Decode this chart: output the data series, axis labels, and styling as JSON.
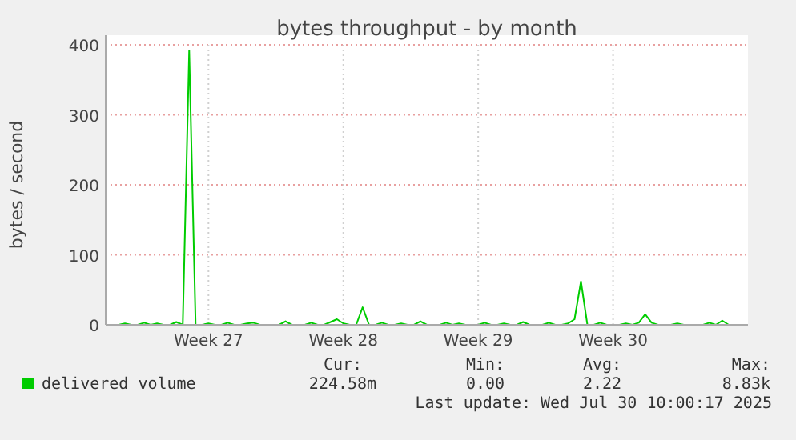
{
  "chart_data": {
    "type": "line",
    "title": "bytes throughput - by month",
    "ylabel": "bytes / second",
    "categories": [
      null,
      null,
      null,
      null,
      null,
      null,
      null,
      null,
      null,
      null,
      null,
      null,
      null,
      null,
      null,
      null,
      "Week 27",
      null,
      null,
      null,
      null,
      null,
      null,
      null,
      null,
      null,
      null,
      null,
      null,
      null,
      null,
      null,
      null,
      null,
      null,
      null,
      null,
      "Week 28",
      null,
      null,
      null,
      null,
      null,
      null,
      null,
      null,
      null,
      null,
      null,
      null,
      null,
      null,
      null,
      null,
      null,
      null,
      null,
      null,
      "Week 29",
      null,
      null,
      null,
      null,
      null,
      null,
      null,
      null,
      null,
      null,
      null,
      null,
      null,
      null,
      null,
      null,
      null,
      null,
      null,
      null,
      "Week 30",
      null,
      null,
      null,
      null,
      null,
      null,
      null,
      null,
      null,
      null,
      null,
      null,
      null,
      null,
      null,
      null,
      null,
      null,
      null,
      null,
      null
    ],
    "ylim": [
      0,
      400
    ],
    "yticks": [
      0,
      100,
      200,
      300,
      400
    ],
    "grid": true,
    "legend": "bottom",
    "series": [
      {
        "name": "delivered volume",
        "color": "#00cc00",
        "values": [
          null,
          null,
          0,
          2,
          0,
          0,
          3,
          0,
          2,
          0,
          0,
          4,
          0,
          392,
          0,
          0,
          2,
          0,
          0,
          3,
          0,
          0,
          2,
          3,
          0,
          0,
          0,
          0,
          5,
          0,
          0,
          0,
          3,
          0,
          0,
          4,
          8,
          2,
          0,
          0,
          25,
          0,
          0,
          3,
          0,
          0,
          2,
          0,
          0,
          5,
          0,
          0,
          0,
          3,
          0,
          2,
          0,
          0,
          0,
          3,
          0,
          0,
          2,
          0,
          0,
          4,
          0,
          0,
          0,
          3,
          0,
          0,
          2,
          8,
          62,
          0,
          0,
          3,
          0,
          0,
          0,
          2,
          0,
          3,
          15,
          3,
          0,
          0,
          0,
          2,
          0,
          0,
          0,
          0,
          3,
          0,
          6,
          0,
          0,
          null,
          null
        ]
      }
    ],
    "annotations": [
      "Cur:",
      "224.58m",
      "Min:",
      "0.00",
      "Avg:",
      "2.22",
      "Max:",
      "8.83k",
      "Last update: Wed Jul 30 10:00:17 2025"
    ]
  }
}
